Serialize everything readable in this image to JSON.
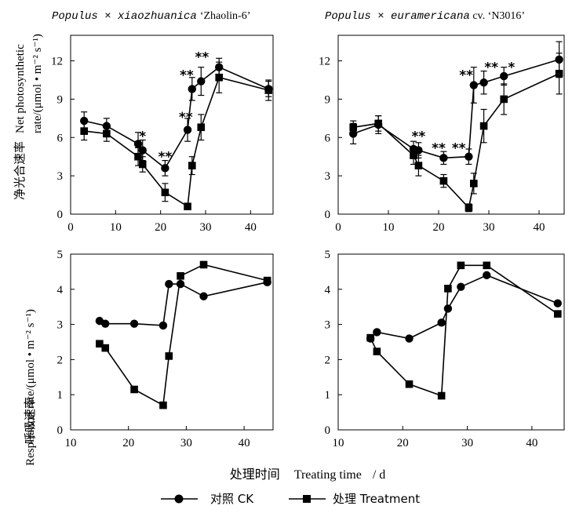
{
  "figure": {
    "panel_titles": [
      {
        "species": "Populus × xiaozhuanica",
        "cultivar": "‘Zhaolin-6’"
      },
      {
        "species": "Populus × euramericana",
        "suffix": " cv. ",
        "cultivar": "‘N3016’"
      }
    ],
    "ylabel_top": {
      "cn": "净光合速率",
      "en1": "Net photosynthetic",
      "en2": "rate/(",
      "unit": "μmol • m⁻² s⁻¹",
      "close": ")"
    },
    "ylabel_bottom": {
      "cn": "呼吸速率",
      "en": "Respiration rate/(",
      "unit": "μmol • m⁻² s⁻¹",
      "close": ")"
    },
    "xlabel": {
      "cn": "处理时间",
      "en": "Treating time",
      "unit": "/ d"
    },
    "legend": {
      "ck": "对照  CK",
      "treatment": "处理  Treatment"
    }
  },
  "chart_data": [
    {
      "type": "line",
      "panel": "top-left",
      "title": "Populus × xiaozhuanica ‘Zhaolin-6’",
      "ylabel": "Net photosynthetic rate/(μmol • m-2 s-1)",
      "xlim": [
        0,
        45
      ],
      "ylim": [
        0,
        14
      ],
      "xticks": [
        "0",
        "10",
        "20",
        "30",
        "40"
      ],
      "yticks": [
        "0",
        "3",
        "6",
        "9",
        "12"
      ],
      "series": [
        {
          "name": "对照 CK",
          "marker": "circle",
          "x": [
            3,
            8,
            15,
            16,
            21,
            26,
            27,
            29,
            33,
            44
          ],
          "y": [
            7.3,
            6.9,
            5.5,
            5.0,
            3.6,
            6.6,
            9.8,
            10.4,
            11.5,
            9.8
          ],
          "err": [
            0.7,
            0.6,
            0.9,
            0.8,
            0.6,
            0.9,
            0.9,
            1.1,
            0.7,
            0.6
          ]
        },
        {
          "name": "处理 Treatment",
          "marker": "square",
          "x": [
            3,
            8,
            15,
            16,
            21,
            26,
            27,
            29,
            33,
            44
          ],
          "y": [
            6.5,
            6.3,
            4.5,
            3.9,
            1.7,
            0.6,
            3.8,
            6.8,
            10.7,
            9.7
          ],
          "err": [
            0.7,
            0.6,
            0.7,
            0.6,
            0.7,
            0.2,
            0.7,
            1.0,
            1.2,
            0.8
          ]
        }
      ],
      "annotations": [
        {
          "x": 16,
          "y": 6.1,
          "text": "*"
        },
        {
          "x": 21,
          "y": 4.5,
          "text": "**"
        },
        {
          "x": 25.6,
          "y": 7.6,
          "text": "**"
        },
        {
          "x": 25.8,
          "y": 10.9,
          "text": "**"
        },
        {
          "x": 29.2,
          "y": 12.3,
          "text": "**"
        }
      ]
    },
    {
      "type": "line",
      "panel": "top-right",
      "title": "Populus × euramericana cv. ‘N3016’",
      "xlim": [
        0,
        45
      ],
      "ylim": [
        0,
        14
      ],
      "xticks": [
        "0",
        "10",
        "20",
        "30",
        "40"
      ],
      "yticks": [
        "0",
        "3",
        "6",
        "9",
        "12"
      ],
      "series": [
        {
          "name": "对照 CK",
          "marker": "circle",
          "x": [
            3,
            8,
            15,
            16,
            21,
            26,
            27,
            29,
            33,
            44
          ],
          "y": [
            6.3,
            7.0,
            5.1,
            5.0,
            4.4,
            4.5,
            10.1,
            10.3,
            10.8,
            12.1
          ],
          "err": [
            0.8,
            0.7,
            0.6,
            0.6,
            0.5,
            0.6,
            1.4,
            0.9,
            0.7,
            1.4
          ]
        },
        {
          "name": "处理 Treatment",
          "marker": "square",
          "x": [
            3,
            8,
            15,
            16,
            21,
            26,
            27,
            29,
            33,
            44
          ],
          "y": [
            6.8,
            7.1,
            4.6,
            3.8,
            2.6,
            0.5,
            2.4,
            6.9,
            9.0,
            11.0
          ],
          "err": [
            0.5,
            0.6,
            0.7,
            0.8,
            0.5,
            0.3,
            0.8,
            1.3,
            1.2,
            1.6
          ]
        }
      ],
      "annotations": [
        {
          "x": 16,
          "y": 6.1,
          "text": "**"
        },
        {
          "x": 20,
          "y": 5.2,
          "text": "**"
        },
        {
          "x": 24,
          "y": 5.2,
          "text": "**"
        },
        {
          "x": 25.5,
          "y": 10.9,
          "text": "**"
        },
        {
          "x": 30.5,
          "y": 11.5,
          "text": "**"
        },
        {
          "x": 34.5,
          "y": 11.5,
          "text": "*"
        }
      ]
    },
    {
      "type": "line",
      "panel": "bottom-left",
      "ylabel": "Respiration rate/(μmol • m-2 s-1)",
      "xlim": [
        10,
        45
      ],
      "ylim": [
        0,
        5
      ],
      "xticks": [
        "10",
        "20",
        "30",
        "40"
      ],
      "yticks": [
        "0",
        "1",
        "2",
        "3",
        "4",
        "5"
      ],
      "series": [
        {
          "name": "对照 CK",
          "marker": "circle",
          "x": [
            15,
            16,
            21,
            26,
            27,
            29,
            33,
            44
          ],
          "y": [
            3.1,
            3.02,
            3.02,
            2.97,
            4.15,
            4.15,
            3.8,
            4.2
          ]
        },
        {
          "name": "处理 Treatment",
          "marker": "square",
          "x": [
            15,
            16,
            21,
            26,
            27,
            29,
            33,
            44
          ],
          "y": [
            2.45,
            2.33,
            1.15,
            0.7,
            2.1,
            4.38,
            4.7,
            4.25
          ]
        }
      ]
    },
    {
      "type": "line",
      "panel": "bottom-right",
      "xlim": [
        10,
        45
      ],
      "ylim": [
        0,
        5
      ],
      "xticks": [
        "10",
        "20",
        "30",
        "40"
      ],
      "yticks": [
        "0",
        "1",
        "2",
        "3",
        "4",
        "5"
      ],
      "series": [
        {
          "name": "对照 CK",
          "marker": "circle",
          "x": [
            15,
            16,
            21,
            26,
            27,
            29,
            33,
            44
          ],
          "y": [
            2.6,
            2.78,
            2.6,
            3.05,
            3.45,
            4.07,
            4.4,
            3.6
          ]
        },
        {
          "name": "处理 Treatment",
          "marker": "square",
          "x": [
            15,
            16,
            21,
            26,
            27,
            29,
            33,
            44
          ],
          "y": [
            2.62,
            2.23,
            1.3,
            0.97,
            4.02,
            4.68,
            4.68,
            3.3
          ]
        }
      ]
    }
  ]
}
